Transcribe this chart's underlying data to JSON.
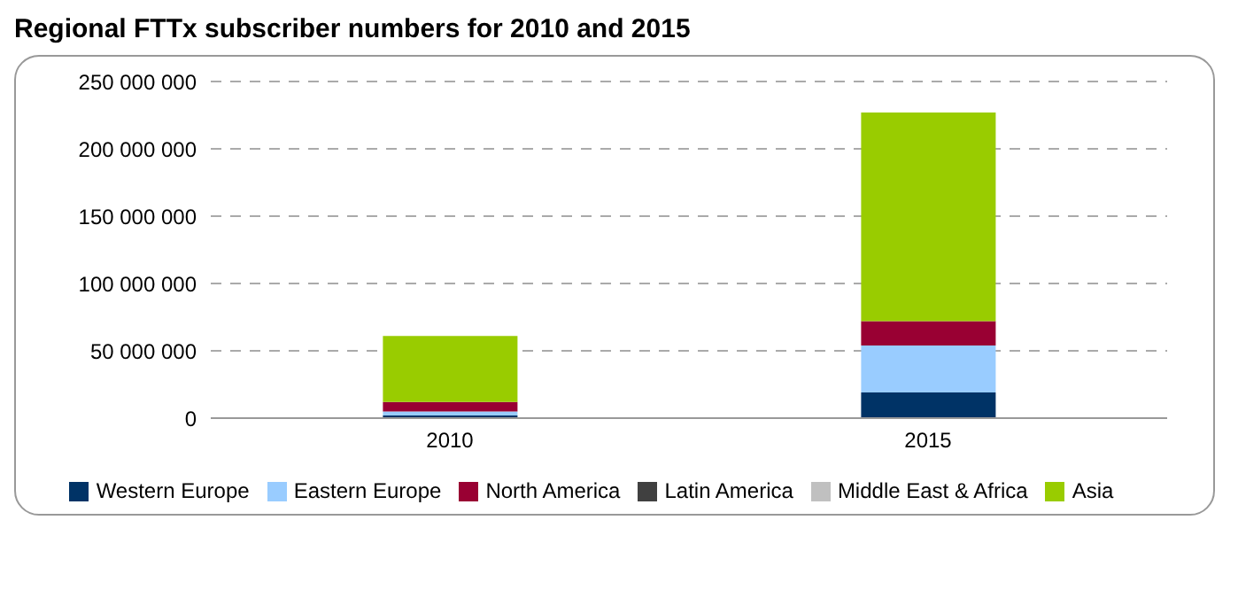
{
  "chart_data": {
    "type": "bar",
    "title": "Regional FTTx subscriber numbers for 2010 and 2015",
    "categories": [
      "2010",
      "2015"
    ],
    "stacked": true,
    "series": [
      {
        "name": "Western Europe",
        "color": "#003366",
        "values": [
          2000000,
          19000000
        ]
      },
      {
        "name": "Eastern Europe",
        "color": "#99ccff",
        "values": [
          3000000,
          35000000
        ]
      },
      {
        "name": "North America",
        "color": "#990033",
        "values": [
          7000000,
          18000000
        ]
      },
      {
        "name": "Latin America",
        "color": "#404040",
        "values": [
          null,
          null
        ]
      },
      {
        "name": "Middle East & Africa",
        "color": "#c0c0c0",
        "values": [
          null,
          null
        ]
      },
      {
        "name": "Asia",
        "color": "#99cc00",
        "values": [
          49000000,
          155000000
        ]
      }
    ],
    "ylim": [
      0,
      250000000
    ],
    "yticks": [
      {
        "value": 0,
        "label": "0"
      },
      {
        "value": 50000000,
        "label": "50 000 000"
      },
      {
        "value": 100000000,
        "label": "100 000 000"
      },
      {
        "value": 150000000,
        "label": "150 000 000"
      },
      {
        "value": 200000000,
        "label": "200 000 000"
      },
      {
        "value": 250000000,
        "label": "250 000 000"
      }
    ],
    "grid": "y",
    "legend": "bottom"
  }
}
